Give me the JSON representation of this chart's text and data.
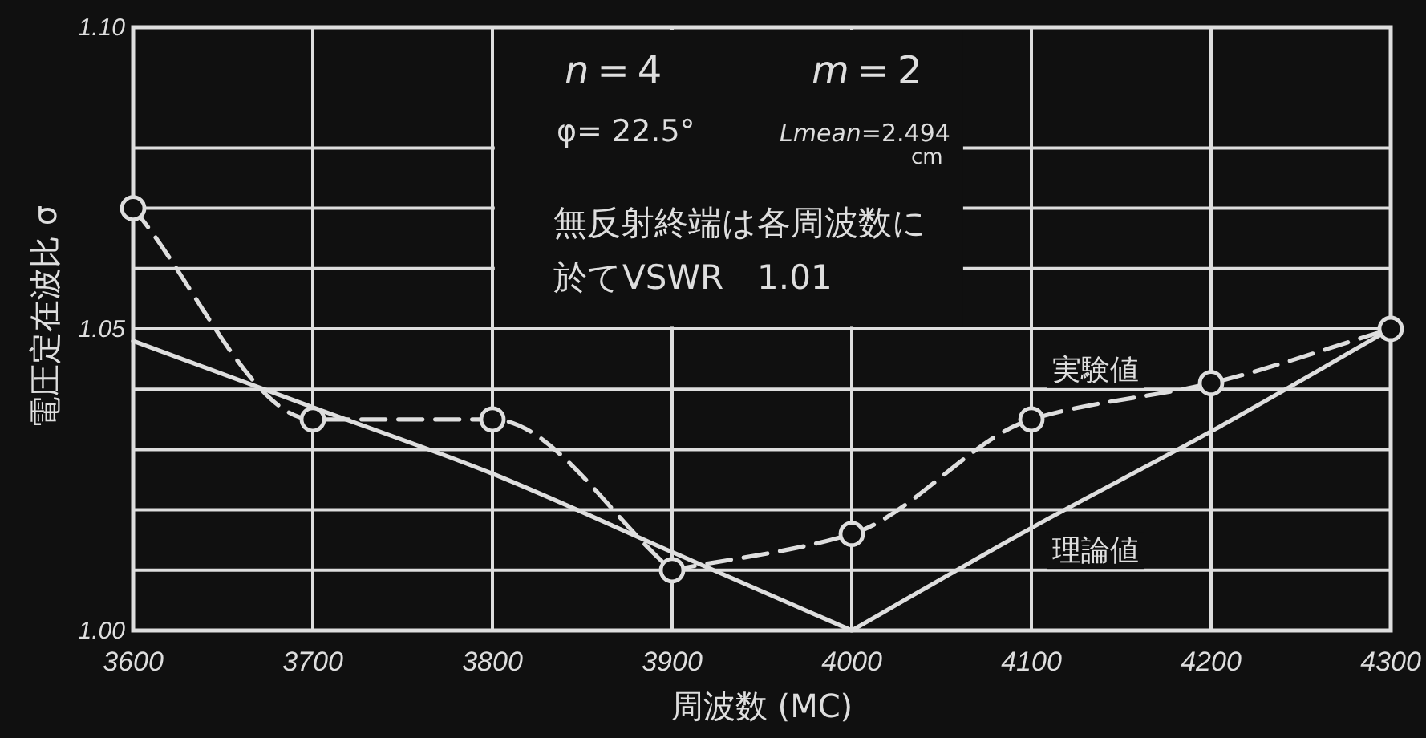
{
  "chart_data": {
    "type": "line",
    "xlabel": "周波数 (MC)",
    "ylabel": "電圧定在波比 σ",
    "x": [
      3600,
      3700,
      3800,
      3900,
      4000,
      4100,
      4200,
      4300
    ],
    "series": [
      {
        "name": "実験値",
        "color": "#dedede",
        "values": [
          1.07,
          1.035,
          1.035,
          1.01,
          1.016,
          1.035,
          1.041,
          1.05
        ],
        "marker": "circle",
        "line_style": "dashed"
      },
      {
        "name": "理論値",
        "color": "#dedede",
        "values": [
          1.048,
          1.037,
          1.026,
          1.013,
          1.0,
          1.017,
          1.033,
          1.05
        ],
        "line_style": "solid"
      }
    ],
    "xlim": [
      3600,
      4300
    ],
    "ylim": [
      1.0,
      1.1
    ],
    "xticks": [
      3600,
      3700,
      3800,
      3900,
      4000,
      4100,
      4200,
      4300
    ],
    "yticks": [
      {
        "value": 1.0,
        "label": "1.00"
      },
      {
        "value": 1.01,
        "label": null
      },
      {
        "value": 1.02,
        "label": null
      },
      {
        "value": 1.03,
        "label": null
      },
      {
        "value": 1.04,
        "label": null
      },
      1.05,
      {
        "value": 1.06,
        "label": null
      },
      {
        "value": 1.07,
        "label": null
      },
      {
        "value": 1.08,
        "label": null
      },
      {
        "value": 1.1,
        "label": "1.10"
      }
    ],
    "grid": true,
    "annotations": [
      "*n*=4",
      "*m*=2",
      "φ= 22.5°",
      "*Lmean*=2.494",
      "cm",
      "無反射終端は各周波数に",
      "於てVSWR　1.01"
    ]
  }
}
